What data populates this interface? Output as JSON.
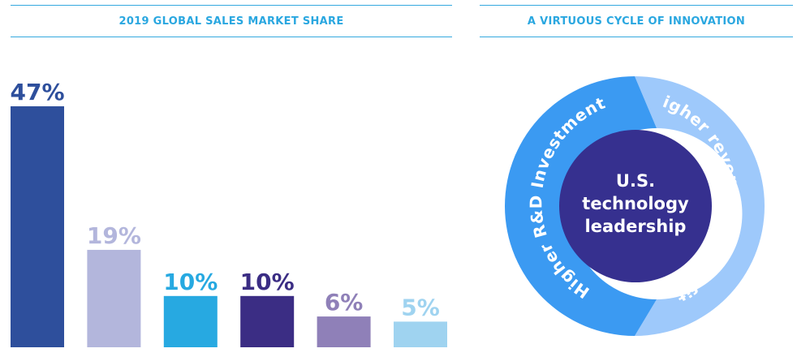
{
  "left_panel": {
    "title": "2019 GLOBAL SALES MARKET SHARE"
  },
  "right_panel": {
    "title": "A VIRTUOUS CYCLE OF INNOVATION",
    "ring_left": "Higher R&D Investment",
    "ring_right": "Higher revenue and profits",
    "center_lines": [
      "U.S.",
      "technology",
      "leadership"
    ]
  },
  "chart_data": {
    "type": "bar",
    "title": "2019 GLOBAL SALES MARKET SHARE",
    "xlabel": "",
    "ylabel": "",
    "ylim": [
      0,
      47
    ],
    "grid": false,
    "values": [
      47,
      19,
      10,
      10,
      6,
      5
    ],
    "labels": [
      "47%",
      "19%",
      "10%",
      "10%",
      "6%",
      "5%"
    ],
    "colors": [
      "#2e4f9c",
      "#b3b6dc",
      "#27a9e1",
      "#3b2d84",
      "#8f80b8",
      "#9fd3f0"
    ]
  },
  "colors": {
    "header_text": "#2aa7e0",
    "header_rule": "#35a9df",
    "ring_left": "#3b9af2",
    "ring_right": "#9ec9fb",
    "center": "#36308f"
  }
}
